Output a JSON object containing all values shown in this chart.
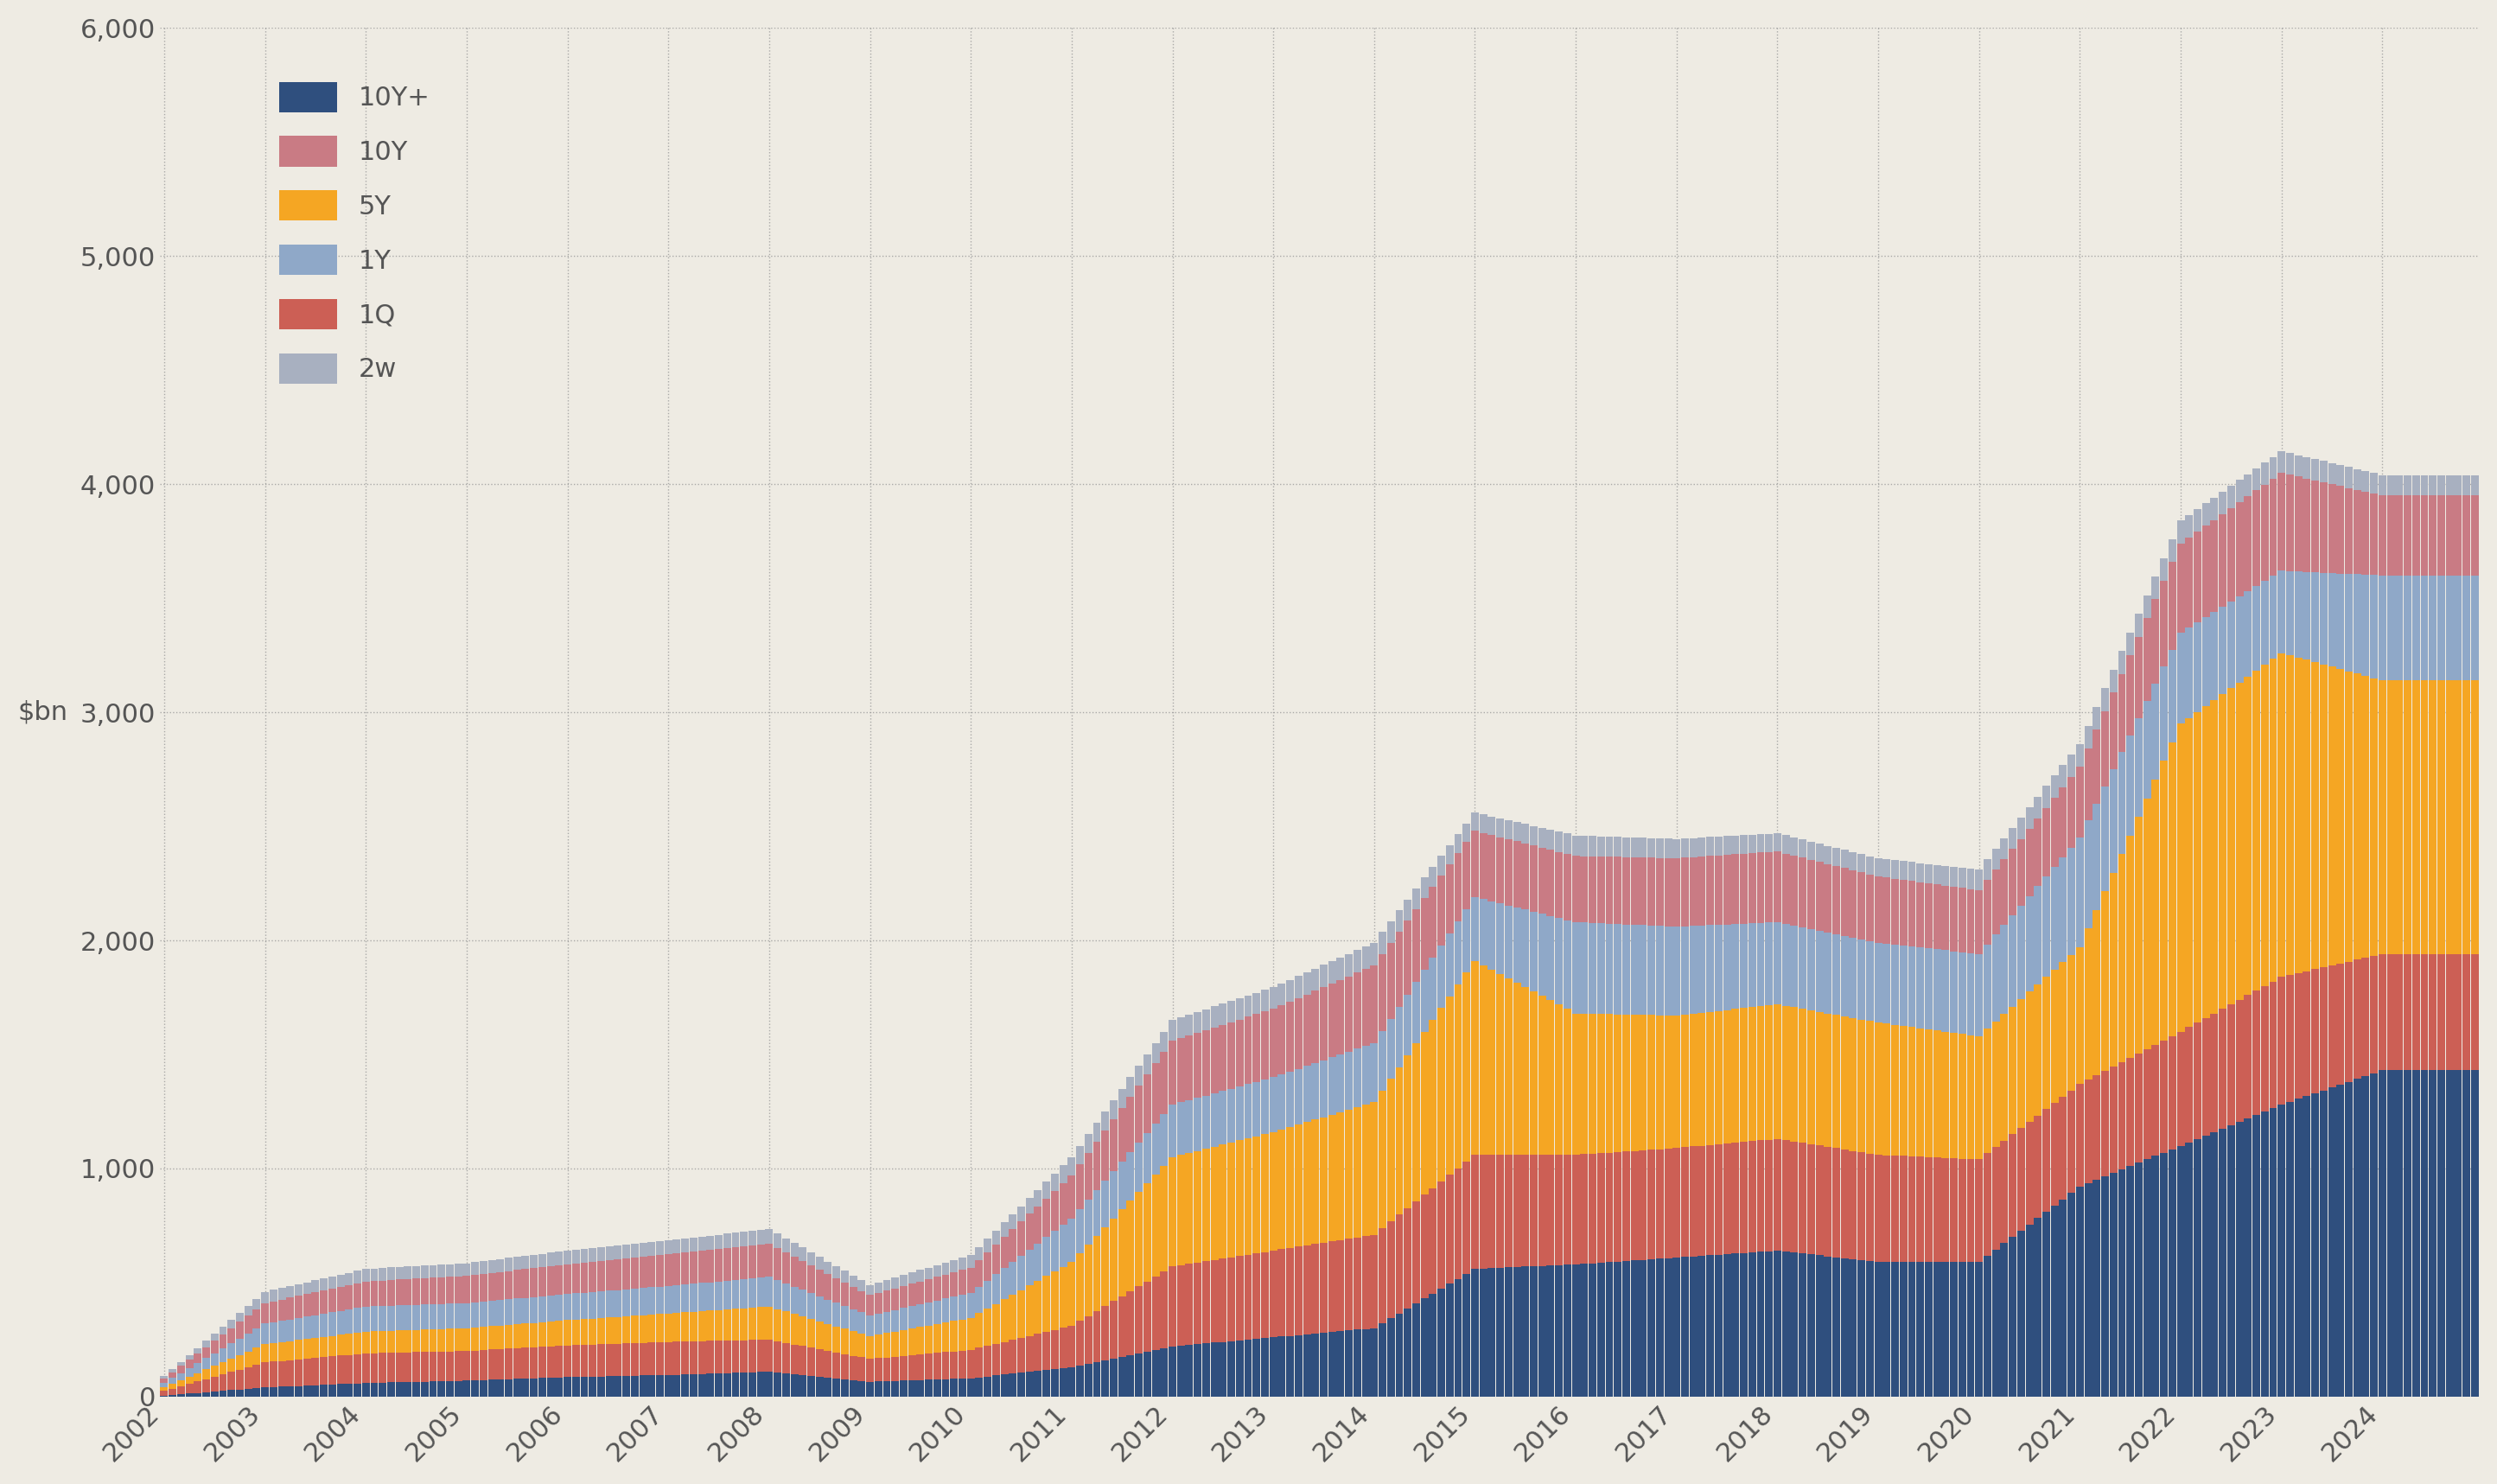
{
  "background_color": "#eeebe3",
  "grid_color": "#999999",
  "ylabel": "$bn",
  "ylim": [
    0,
    6000
  ],
  "yticks": [
    0,
    1000,
    2000,
    3000,
    4000,
    5000,
    6000
  ],
  "legend_labels": [
    "10Y+",
    "10Y",
    "5Y",
    "1Y",
    "1Q",
    "2w"
  ],
  "legend_order": [
    "10Y+",
    "10Y",
    "5Y",
    "1Y",
    "1Q",
    "2w"
  ],
  "stack_order": [
    "10Y+",
    "1Q",
    "5Y",
    "1Y",
    "10Y",
    "2w"
  ],
  "colors": {
    "10Y+": "#2f4f7e",
    "10Y": "#c97b84",
    "5Y": "#f5a623",
    "1Y": "#8fa8c8",
    "1Q": "#cc5f55",
    "2w": "#a8b0c0"
  },
  "x_labels": [
    "2002",
    "2003",
    "2004",
    "2005",
    "2006",
    "2007",
    "2008",
    "2009",
    "2010",
    "2011",
    "2012",
    "2013",
    "2014",
    "2015",
    "2016",
    "2017",
    "2018",
    "2019",
    "2020",
    "2021",
    "2022",
    "2023",
    "2024"
  ],
  "data": {
    "10Y+": [
      5,
      40,
      60,
      70,
      85,
      95,
      110,
      65,
      80,
      130,
      220,
      260,
      300,
      560,
      580,
      610,
      640,
      590,
      590,
      920,
      1100,
      1280,
      1430
    ],
    "1Q": [
      20,
      110,
      130,
      130,
      140,
      145,
      140,
      100,
      125,
      180,
      350,
      380,
      410,
      500,
      480,
      480,
      490,
      470,
      450,
      450,
      500,
      560,
      510
    ],
    "5Y": [
      15,
      80,
      95,
      100,
      110,
      125,
      145,
      100,
      140,
      280,
      480,
      520,
      580,
      850,
      620,
      580,
      590,
      580,
      540,
      600,
      1350,
      1420,
      1200
    ],
    "1Y": [
      20,
      90,
      110,
      110,
      115,
      120,
      130,
      90,
      110,
      190,
      230,
      240,
      260,
      280,
      400,
      390,
      360,
      350,
      360,
      480,
      400,
      360,
      460
    ],
    "10Y": [
      20,
      90,
      110,
      120,
      130,
      140,
      145,
      90,
      110,
      190,
      280,
      300,
      340,
      290,
      290,
      300,
      310,
      290,
      280,
      310,
      390,
      430,
      350
    ],
    "2w": [
      10,
      50,
      55,
      55,
      60,
      60,
      65,
      45,
      55,
      80,
      90,
      95,
      100,
      80,
      90,
      85,
      80,
      80,
      90,
      100,
      100,
      95,
      90
    ]
  },
  "tick_fontsize": 22,
  "axis_label_fontsize": 22,
  "legend_fontsize": 22
}
